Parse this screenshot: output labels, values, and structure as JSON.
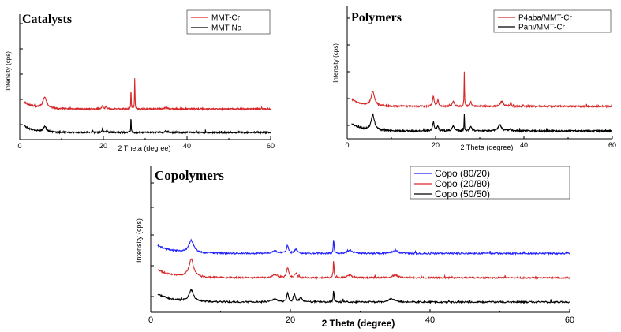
{
  "chart_data": [
    {
      "type": "line",
      "title": "Catalysts",
      "xlabel": "2 Theta (degree)",
      "ylabel": "Intensity (cps)",
      "xlim": [
        0,
        60
      ],
      "x_ticks": [
        0,
        20,
        40,
        60
      ],
      "grid": false,
      "legend_position": "top-right",
      "series": [
        {
          "name": "MMT-Cr",
          "color": "#d62728",
          "offset": 1.15,
          "peaks": [
            [
              6.0,
              0.55,
              1.1
            ],
            [
              19.8,
              0.18,
              0.3
            ],
            [
              20.6,
              0.12,
              0.3
            ],
            [
              26.6,
              1.0,
              0.12
            ],
            [
              27.5,
              1.6,
              0.12
            ],
            [
              35.0,
              0.08,
              0.6
            ]
          ]
        },
        {
          "name": "MMT-Na",
          "color": "#000000",
          "offset": 0.0,
          "peaks": [
            [
              6.0,
              0.25,
              1.0
            ],
            [
              19.8,
              0.18,
              0.3
            ],
            [
              20.8,
              0.12,
              0.3
            ],
            [
              26.6,
              0.8,
              0.12
            ],
            [
              35.0,
              0.08,
              0.6
            ]
          ]
        }
      ]
    },
    {
      "type": "line",
      "title": "Polymers",
      "xlabel": "2 Theta (degree)",
      "ylabel": "Intensity (cps)",
      "xlim": [
        0,
        60
      ],
      "x_ticks": [
        0,
        20,
        40,
        60
      ],
      "grid": false,
      "legend_position": "top-right",
      "series": [
        {
          "name": "P4aba/MMT-Cr",
          "color": "#d62728",
          "offset": 1.2,
          "peaks": [
            [
              5.8,
              0.7,
              0.9
            ],
            [
              19.5,
              0.5,
              0.4
            ],
            [
              20.5,
              0.3,
              0.4
            ],
            [
              24.0,
              0.25,
              0.5
            ],
            [
              26.5,
              1.7,
              0.12
            ],
            [
              28.0,
              0.25,
              0.3
            ],
            [
              35.0,
              0.25,
              0.8
            ],
            [
              37.0,
              0.15,
              0.3
            ]
          ]
        },
        {
          "name": "Pani/MMT-Cr",
          "color": "#000000",
          "offset": 0.0,
          "peaks": [
            [
              5.8,
              0.75,
              0.9
            ],
            [
              19.5,
              0.45,
              0.4
            ],
            [
              20.5,
              0.25,
              0.4
            ],
            [
              24.0,
              0.25,
              0.6
            ],
            [
              26.5,
              0.85,
              0.12
            ],
            [
              28.0,
              0.25,
              0.4
            ],
            [
              34.5,
              0.3,
              0.9
            ],
            [
              37.0,
              0.12,
              0.3
            ]
          ]
        }
      ]
    },
    {
      "type": "line",
      "title": "Copolymers",
      "xlabel": "2 Theta (degree)",
      "ylabel": "Intensity (cps)",
      "xlim": [
        0,
        60
      ],
      "x_ticks": [
        0,
        20,
        40,
        60
      ],
      "grid": false,
      "legend_position": "top-right",
      "series": [
        {
          "name": "Copo (80/20)",
          "color": "#1f1fff",
          "offset": 2.2,
          "peaks": [
            [
              5.8,
              0.55,
              0.9
            ],
            [
              17.8,
              0.12,
              0.8
            ],
            [
              19.6,
              0.35,
              0.35
            ],
            [
              20.8,
              0.2,
              0.4
            ],
            [
              26.2,
              0.75,
              0.12
            ],
            [
              28.5,
              0.15,
              0.8
            ],
            [
              35.0,
              0.12,
              1.0
            ]
          ]
        },
        {
          "name": "Copo (20/80)",
          "color": "#d62728",
          "offset": 1.1,
          "peaks": [
            [
              5.8,
              0.8,
              0.8
            ],
            [
              17.8,
              0.15,
              0.8
            ],
            [
              19.6,
              0.45,
              0.35
            ],
            [
              20.8,
              0.2,
              0.4
            ],
            [
              26.2,
              0.85,
              0.12
            ],
            [
              28.5,
              0.12,
              0.8
            ],
            [
              35.0,
              0.12,
              1.0
            ]
          ]
        },
        {
          "name": "Copo (50/50)",
          "color": "#000000",
          "offset": 0.0,
          "peaks": [
            [
              5.8,
              0.5,
              0.8
            ],
            [
              17.8,
              0.15,
              0.8
            ],
            [
              19.6,
              0.4,
              0.3
            ],
            [
              20.6,
              0.35,
              0.3
            ],
            [
              21.5,
              0.2,
              0.4
            ],
            [
              26.2,
              0.6,
              0.12
            ],
            [
              34.5,
              0.15,
              1.0
            ]
          ]
        }
      ]
    }
  ]
}
